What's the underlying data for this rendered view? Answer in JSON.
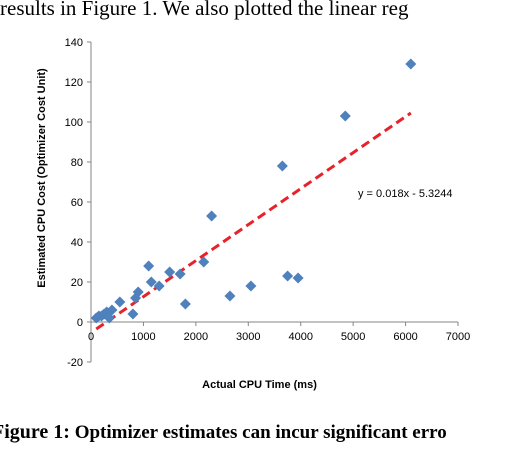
{
  "document": {
    "body_text_fragment": "results in Figure 1.  We also plotted the linear reg",
    "caption_label": "Figure 1:",
    "caption_text": " Optimizer estimates can incur significant erro"
  },
  "chart_data": {
    "type": "scatter",
    "title": "",
    "xlabel": "Actual CPU Time (ms)",
    "ylabel": "Estimated CPU Cost (Optimizer Cost Unit)",
    "xlim": [
      0,
      7000
    ],
    "ylim": [
      -20,
      140
    ],
    "x_ticks": [
      0,
      1000,
      2000,
      3000,
      4000,
      5000,
      6000,
      7000
    ],
    "y_ticks": [
      -20,
      0,
      20,
      40,
      60,
      80,
      100,
      120,
      140
    ],
    "grid": false,
    "legend": "none",
    "marker": "diamond",
    "marker_color": "#4f81bd",
    "points": [
      {
        "x": 100,
        "y": 2
      },
      {
        "x": 150,
        "y": 3
      },
      {
        "x": 200,
        "y": 3
      },
      {
        "x": 250,
        "y": 4
      },
      {
        "x": 300,
        "y": 5
      },
      {
        "x": 350,
        "y": 2
      },
      {
        "x": 400,
        "y": 6
      },
      {
        "x": 550,
        "y": 10
      },
      {
        "x": 800,
        "y": 4
      },
      {
        "x": 850,
        "y": 12
      },
      {
        "x": 900,
        "y": 15
      },
      {
        "x": 1100,
        "y": 28
      },
      {
        "x": 1150,
        "y": 20
      },
      {
        "x": 1300,
        "y": 18
      },
      {
        "x": 1500,
        "y": 25
      },
      {
        "x": 1700,
        "y": 24
      },
      {
        "x": 1800,
        "y": 9
      },
      {
        "x": 2150,
        "y": 30
      },
      {
        "x": 2300,
        "y": 53
      },
      {
        "x": 2650,
        "y": 13
      },
      {
        "x": 3050,
        "y": 18
      },
      {
        "x": 3650,
        "y": 78
      },
      {
        "x": 3750,
        "y": 23
      },
      {
        "x": 3950,
        "y": 22
      },
      {
        "x": 4850,
        "y": 103
      },
      {
        "x": 6100,
        "y": 129
      }
    ],
    "trendline": {
      "equation": "y = 0.018x - 5.3244",
      "slope": 0.018,
      "intercept": -5.3244,
      "x_range": [
        100,
        6100
      ],
      "color": "#e8222a",
      "style": "dashed"
    }
  }
}
